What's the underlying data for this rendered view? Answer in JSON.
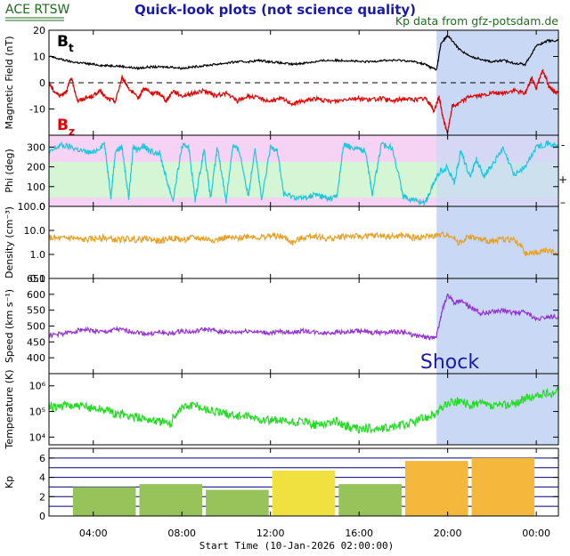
{
  "header": {
    "source_label": "ACE RTSW",
    "title": "Quick-look plots (not science quality)",
    "kp_source": "Kp data from gfz-potsdam.de"
  },
  "colors": {
    "header_green": "#1b6e1b",
    "title_blue": "#1a1aa8",
    "shade": "#c9d8f5",
    "bt": "#000000",
    "bz": "#e00000",
    "phi": "#1ec8dc",
    "phi_band_pink": "#f6d2f4",
    "phi_band_green": "#d4f6d4",
    "density": "#e8a020",
    "speed": "#9632d2",
    "temperature": "#22dc22",
    "kp_green": "#96c35a",
    "kp_yellow": "#f0e040",
    "kp_orange": "#f4b83c",
    "kp_lines": "#000080"
  },
  "chart_data": [
    {
      "id": "mag",
      "type": "line",
      "ylabel": "Magnetic Field (nT)",
      "ylim": [
        -20,
        20
      ],
      "yticks": [
        -10,
        0,
        10,
        20
      ],
      "zero_line": "dashed",
      "labels": {
        "bt_main": "B",
        "bt_sub": "t",
        "bz_main": "B",
        "bz_sub": "z"
      },
      "series": [
        {
          "key": "bt",
          "x": [
            2.0,
            2.5,
            3.0,
            3.5,
            4.0,
            4.5,
            5.0,
            5.5,
            6.0,
            6.5,
            7.0,
            7.5,
            8.0,
            8.5,
            9.0,
            9.5,
            10.0,
            10.5,
            11.0,
            11.5,
            12.0,
            12.5,
            13.0,
            13.5,
            14.0,
            14.5,
            15.0,
            15.5,
            16.0,
            16.5,
            17.0,
            17.5,
            18.0,
            18.5,
            19.0,
            19.2,
            19.5,
            19.7,
            20.0,
            20.5,
            21.0,
            21.5,
            22.0,
            22.5,
            23.0,
            23.5,
            24.0,
            24.5,
            25.0
          ],
          "y": [
            10,
            9,
            8,
            7.5,
            7,
            6.5,
            6.5,
            6,
            5.5,
            6,
            6,
            6,
            5.5,
            6,
            6.5,
            7,
            7.5,
            8,
            8,
            8.5,
            8,
            7.5,
            7,
            7.5,
            8,
            8.5,
            8.5,
            8.5,
            8,
            8,
            8.5,
            8.5,
            8.5,
            8,
            7,
            6,
            5,
            15,
            18,
            13,
            10,
            9,
            8,
            8.5,
            7.5,
            7,
            14,
            16,
            16
          ]
        },
        {
          "key": "bz",
          "x": [
            2.0,
            2.2,
            2.5,
            2.8,
            3.0,
            3.3,
            3.6,
            4.0,
            4.3,
            4.6,
            5.0,
            5.3,
            5.6,
            6.0,
            6.3,
            6.6,
            7.0,
            7.3,
            7.6,
            8.0,
            8.5,
            9.0,
            9.5,
            10.0,
            10.5,
            11.0,
            11.5,
            12.0,
            12.5,
            13.0,
            13.5,
            14.0,
            14.5,
            15.0,
            15.5,
            16.0,
            16.5,
            17.0,
            17.5,
            18.0,
            18.5,
            19.0,
            19.2,
            19.4,
            19.6,
            19.8,
            20.0,
            20.2,
            20.5,
            21.0,
            21.5,
            22.0,
            22.5,
            23.0,
            23.5,
            23.8,
            24.0,
            24.3,
            24.6,
            25.0
          ],
          "y": [
            0,
            -3,
            -5,
            -3,
            2,
            -7,
            -6,
            -5,
            -3,
            -6,
            -7,
            2,
            -2,
            -6,
            -2,
            -4,
            -4,
            -7,
            -3,
            -5,
            -4,
            -3,
            -5,
            -4,
            -7,
            -5,
            -6,
            -7,
            -6,
            -8,
            -7,
            -6,
            -7,
            -7,
            -6,
            -6,
            -6.5,
            -6,
            -7,
            -6,
            -6.5,
            -6,
            -8,
            -11,
            -5,
            -14,
            -19,
            -9,
            -8,
            -5,
            -5,
            -4,
            -4,
            -3,
            -4,
            2,
            -2,
            5,
            -2,
            -4
          ]
        }
      ]
    },
    {
      "id": "phi",
      "type": "line",
      "ylabel": "Phi (deg)",
      "ylim": [
        0,
        360
      ],
      "yticks": [
        0,
        100,
        200,
        300
      ],
      "bands": [
        {
          "from": 0,
          "to": 45,
          "color": "pink"
        },
        {
          "from": 45,
          "to": 225,
          "color": "green"
        },
        {
          "from": 225,
          "to": 360,
          "color": "pink"
        }
      ],
      "side_marks": [
        {
          "label": "-",
          "y": 310
        },
        {
          "label": "+",
          "y": 135
        },
        {
          "label": "–",
          "y": 20
        }
      ],
      "series": [
        {
          "key": "phi",
          "x": [
            2.0,
            2.5,
            3.0,
            3.5,
            4.0,
            4.5,
            4.8,
            5.0,
            5.3,
            5.6,
            5.8,
            6.0,
            6.3,
            6.5,
            7.0,
            7.3,
            7.6,
            8.0,
            8.3,
            8.6,
            9.0,
            9.3,
            9.6,
            10.0,
            10.3,
            10.6,
            11.0,
            11.3,
            11.6,
            12.0,
            12.3,
            12.6,
            13.0,
            13.5,
            14.0,
            14.3,
            14.6,
            15.0,
            15.3,
            15.6,
            16.0,
            16.3,
            16.6,
            17.0,
            17.5,
            18.0,
            18.5,
            19.0,
            19.3,
            19.6,
            20.0,
            20.3,
            20.6,
            21.0,
            21.3,
            21.6,
            22.0,
            22.5,
            23.0,
            23.5,
            24.0,
            24.5,
            25.0
          ],
          "y": [
            270,
            310,
            300,
            280,
            270,
            320,
            50,
            280,
            300,
            40,
            300,
            290,
            310,
            280,
            270,
            140,
            30,
            300,
            310,
            30,
            290,
            40,
            300,
            30,
            310,
            280,
            50,
            300,
            30,
            300,
            290,
            60,
            50,
            40,
            60,
            50,
            40,
            50,
            310,
            300,
            290,
            280,
            60,
            310,
            300,
            50,
            30,
            20,
            100,
            170,
            200,
            120,
            280,
            150,
            240,
            150,
            210,
            290,
            160,
            200,
            300,
            320,
            300
          ]
        }
      ]
    },
    {
      "id": "density",
      "type": "line",
      "ylabel": "Density (cm⁻³)",
      "yscale": "log",
      "ylim": [
        0.1,
        100
      ],
      "yticks": [
        0.1,
        1.0,
        10.0,
        100.0
      ],
      "ytick_labels": [
        "0.1",
        "1.0",
        "10.0",
        "100.0"
      ],
      "series": [
        {
          "key": "density",
          "x": [
            2.0,
            2.5,
            3.0,
            3.5,
            4.0,
            4.5,
            5.0,
            5.5,
            6.0,
            6.5,
            7.0,
            7.5,
            8.0,
            8.5,
            9.0,
            9.5,
            10.0,
            10.5,
            11.0,
            11.5,
            12.0,
            12.5,
            13.0,
            13.5,
            14.0,
            14.5,
            15.0,
            15.5,
            16.0,
            16.5,
            17.0,
            17.5,
            18.0,
            18.5,
            19.0,
            19.5,
            20.0,
            20.5,
            21.0,
            21.5,
            22.0,
            22.5,
            23.0,
            23.5,
            24.0,
            24.5,
            25.0
          ],
          "y": [
            5,
            4.5,
            5,
            4,
            4.5,
            5,
            4,
            4.5,
            4,
            4.5,
            3.5,
            5,
            4,
            5,
            4.5,
            4,
            5,
            4.5,
            6,
            5,
            6,
            5.5,
            3,
            5,
            6,
            4.5,
            5,
            6,
            5.5,
            6,
            6,
            5.5,
            6,
            5,
            5.5,
            6,
            7,
            3,
            5.5,
            4,
            3.5,
            4.5,
            4,
            1,
            1.2,
            1.5,
            1.0
          ]
        }
      ]
    },
    {
      "id": "speed",
      "type": "line",
      "ylabel": "Speed (km s⁻¹)",
      "ylim": [
        350,
        650
      ],
      "yticks": [
        400,
        450,
        500,
        550,
        600,
        650
      ],
      "annotation": "Shock",
      "series": [
        {
          "key": "speed",
          "x": [
            2.0,
            2.5,
            3.0,
            3.5,
            4.0,
            4.5,
            5.0,
            5.5,
            6.0,
            6.5,
            7.0,
            7.5,
            8.0,
            8.5,
            9.0,
            9.5,
            10.0,
            10.5,
            11.0,
            11.5,
            12.0,
            12.5,
            13.0,
            13.5,
            14.0,
            14.5,
            15.0,
            15.5,
            16.0,
            16.5,
            17.0,
            17.5,
            18.0,
            18.5,
            19.0,
            19.3,
            19.5,
            19.8,
            20.0,
            20.3,
            20.6,
            21.0,
            21.5,
            22.0,
            22.5,
            23.0,
            23.5,
            24.0,
            24.5,
            25.0
          ],
          "y": [
            470,
            475,
            480,
            490,
            485,
            480,
            490,
            485,
            480,
            475,
            480,
            475,
            485,
            480,
            490,
            485,
            480,
            480,
            485,
            480,
            478,
            482,
            480,
            485,
            480,
            478,
            482,
            480,
            485,
            478,
            480,
            482,
            480,
            470,
            465,
            460,
            470,
            560,
            600,
            570,
            580,
            560,
            540,
            545,
            550,
            540,
            545,
            520,
            530,
            530
          ]
        }
      ]
    },
    {
      "id": "temperature",
      "type": "line",
      "ylabel": "Temperature (K)",
      "yscale": "log",
      "ylim": [
        5000,
        3000000
      ],
      "yticks": [
        10000,
        100000,
        1000000
      ],
      "ytick_labels": [
        "10⁴",
        "10⁵",
        "10⁶"
      ],
      "series": [
        {
          "key": "temperature",
          "x": [
            2.0,
            2.5,
            3.0,
            3.5,
            4.0,
            4.5,
            5.0,
            5.5,
            6.0,
            6.5,
            7.0,
            7.5,
            8.0,
            8.5,
            9.0,
            9.5,
            10.0,
            10.5,
            11.0,
            11.5,
            12.0,
            12.5,
            13.0,
            13.5,
            14.0,
            14.5,
            15.0,
            15.5,
            16.0,
            16.5,
            17.0,
            17.5,
            18.0,
            18.5,
            19.0,
            19.5,
            20.0,
            20.5,
            21.0,
            21.5,
            22.0,
            22.5,
            23.0,
            23.5,
            24.0,
            24.5,
            25.0
          ],
          "y": [
            150000,
            160000,
            170000,
            150000,
            140000,
            120000,
            80000,
            70000,
            60000,
            50000,
            40000,
            30000,
            150000,
            180000,
            130000,
            100000,
            80000,
            70000,
            60000,
            50000,
            45000,
            40000,
            35000,
            40000,
            30000,
            35000,
            40000,
            25000,
            20000,
            22000,
            20000,
            25000,
            30000,
            40000,
            60000,
            80000,
            200000,
            250000,
            180000,
            200000,
            150000,
            180000,
            200000,
            300000,
            400000,
            500000,
            600000
          ]
        }
      ]
    },
    {
      "id": "kp",
      "type": "bar",
      "ylabel": "Kp",
      "ylim": [
        0,
        7
      ],
      "yticks": [
        0,
        2,
        4,
        6
      ],
      "hlines": [
        1,
        2,
        3,
        4,
        5,
        6,
        7
      ],
      "bars": [
        {
          "start": 3,
          "value": 3.0,
          "color": "green"
        },
        {
          "start": 6,
          "value": 3.3,
          "color": "green"
        },
        {
          "start": 9,
          "value": 2.7,
          "color": "green"
        },
        {
          "start": 12,
          "value": 4.7,
          "color": "yellow"
        },
        {
          "start": 15,
          "value": 3.3,
          "color": "green"
        },
        {
          "start": 18,
          "value": 5.7,
          "color": "orange"
        },
        {
          "start": 21,
          "value": 6.0,
          "color": "orange"
        }
      ]
    }
  ],
  "x_axis": {
    "range_hours": [
      2,
      25
    ],
    "tick_hours": [
      4,
      8,
      12,
      16,
      20,
      24
    ],
    "tick_labels": [
      "04:00",
      "08:00",
      "12:00",
      "16:00",
      "20:00",
      "00:00"
    ],
    "label": "Start Time (10-Jan-2026 02:00:00)"
  },
  "shaded_region_hours": [
    19.5,
    25
  ]
}
